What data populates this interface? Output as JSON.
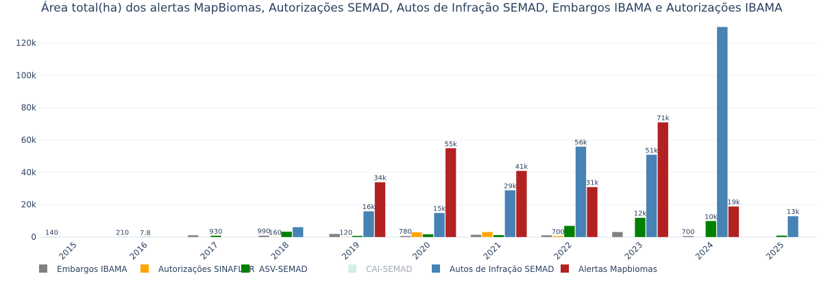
{
  "chart_data": {
    "type": "bar",
    "title": "Área total(ha) dos alertas MapBiomas, Autorizações SEMAD, Autos de Infração SEMAD, Embargos IBAMA e Autorizações IBAMA",
    "xlabel": "",
    "ylabel": "",
    "ylim": [
      0,
      131000
    ],
    "yticks": [
      0,
      20000,
      40000,
      60000,
      80000,
      100000,
      120000
    ],
    "ytick_labels": [
      "0",
      "20k",
      "40k",
      "60k",
      "80k",
      "100k",
      "120k"
    ],
    "grid": true,
    "legend_position": "bottom",
    "categories": [
      "2015",
      "2016",
      "2017",
      "2018",
      "2019",
      "2020",
      "2021",
      "2022",
      "2023",
      "2024",
      "2025"
    ],
    "series": [
      {
        "name": "Embargos IBAMA",
        "color": "#808080",
        "visible": true,
        "values": [
          140,
          210,
          1200,
          990,
          2000,
          780,
          1500,
          1200,
          3200,
          700,
          null
        ],
        "labels": [
          "140",
          "210",
          "",
          "990",
          "",
          "780",
          "",
          "",
          "",
          "700",
          ""
        ]
      },
      {
        "name": "Autorizações SINAFLOR",
        "color": "#ffa500",
        "visible": true,
        "values": [
          null,
          null,
          null,
          160,
          120,
          3000,
          3200,
          700,
          null,
          null,
          null
        ],
        "labels": [
          "",
          "",
          "",
          "160",
          "120",
          "",
          "",
          "700",
          "",
          "",
          ""
        ]
      },
      {
        "name": "ASV-SEMAD",
        "color": "#008000",
        "visible": true,
        "values": [
          null,
          7.8,
          930,
          3400,
          800,
          1800,
          1300,
          7000,
          12000,
          10000,
          1000
        ],
        "labels": [
          "",
          "7.8",
          "930",
          "",
          "",
          "",
          "",
          "",
          "12k",
          "10k",
          ""
        ]
      },
      {
        "name": "CAI-SEMAD",
        "color": "#b8e3cf",
        "visible": false,
        "values": [],
        "labels": []
      },
      {
        "name": "Autos de Infração SEMAD",
        "color": "#4682b4",
        "visible": true,
        "values": [
          null,
          null,
          null,
          6200,
          16000,
          15000,
          29000,
          56000,
          51000,
          130000,
          13000
        ],
        "labels": [
          "",
          "",
          "",
          "",
          "16k",
          "15k",
          "29k",
          "56k",
          "51k",
          "",
          "13k"
        ]
      },
      {
        "name": "Alertas Mapbiomas",
        "color": "#b22222",
        "visible": true,
        "values": [
          null,
          null,
          null,
          null,
          34000,
          55000,
          41000,
          31000,
          71000,
          19000,
          null
        ],
        "labels": [
          "",
          "",
          "",
          "",
          "34k",
          "55k",
          "41k",
          "31k",
          "71k",
          "19k",
          ""
        ]
      }
    ]
  }
}
